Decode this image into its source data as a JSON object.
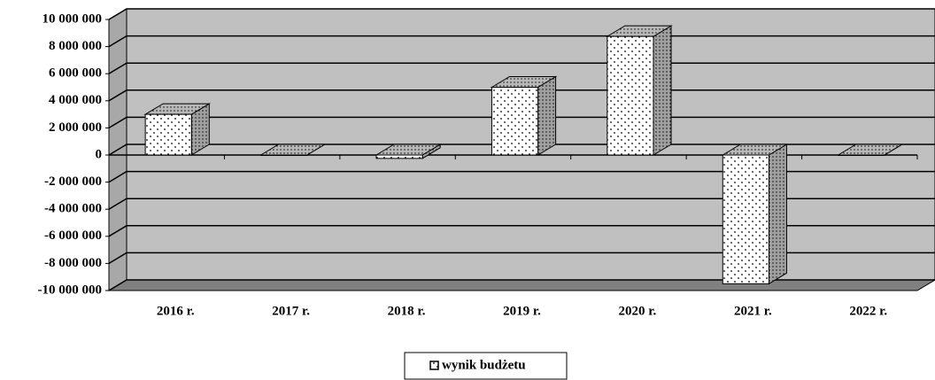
{
  "chart_data": {
    "type": "bar3d",
    "categories": [
      "2016 r.",
      "2017 r.",
      "2018 r.",
      "2019 r.",
      "2020 r.",
      "2021 r.",
      "2022 r."
    ],
    "series": [
      {
        "name": "wynik budżetu",
        "color": "#ffffff",
        "values": [
          3000000,
          0,
          -250000,
          5000000,
          8750000,
          -9500000,
          0
        ]
      }
    ],
    "ylim": [
      -10000000,
      10000000
    ],
    "yticks": [
      {
        "value": -10000000,
        "label": "-10 000 000"
      },
      {
        "value": -8000000,
        "label": "-8 000 000"
      },
      {
        "value": -6000000,
        "label": "-6 000 000"
      },
      {
        "value": -4000000,
        "label": "-4 000 000"
      },
      {
        "value": -2000000,
        "label": "-2 000 000"
      },
      0,
      {
        "value": 2000000,
        "label": "2 000 000"
      },
      {
        "value": 4000000,
        "label": "4 000 000"
      },
      {
        "value": 6000000,
        "label": "6 000 000"
      },
      {
        "value": 8000000,
        "label": "8 000 000"
      },
      {
        "value": 10000000,
        "label": "10 000 000"
      }
    ],
    "grid": true,
    "legend": "bottom"
  }
}
